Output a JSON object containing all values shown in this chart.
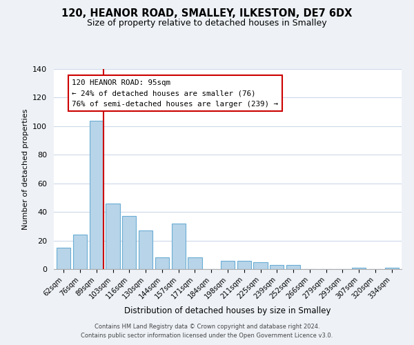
{
  "title": "120, HEANOR ROAD, SMALLEY, ILKESTON, DE7 6DX",
  "subtitle": "Size of property relative to detached houses in Smalley",
  "xlabel": "Distribution of detached houses by size in Smalley",
  "ylabel": "Number of detached properties",
  "bar_color": "#b8d4e8",
  "bar_edge_color": "#6aadd5",
  "categories": [
    "62sqm",
    "76sqm",
    "89sqm",
    "103sqm",
    "116sqm",
    "130sqm",
    "144sqm",
    "157sqm",
    "171sqm",
    "184sqm",
    "198sqm",
    "211sqm",
    "225sqm",
    "239sqm",
    "252sqm",
    "266sqm",
    "279sqm",
    "293sqm",
    "307sqm",
    "320sqm",
    "334sqm"
  ],
  "values": [
    15,
    24,
    104,
    46,
    37,
    27,
    8,
    32,
    8,
    0,
    6,
    6,
    5,
    3,
    3,
    0,
    0,
    0,
    1,
    0,
    1
  ],
  "ylim": [
    0,
    140
  ],
  "yticks": [
    0,
    20,
    40,
    60,
    80,
    100,
    120,
    140
  ],
  "property_line_color": "#cc0000",
  "annotation_title": "120 HEANOR ROAD: 95sqm",
  "annotation_line1": "← 24% of detached houses are smaller (76)",
  "annotation_line2": "76% of semi-detached houses are larger (239) →",
  "annotation_box_color": "#ffffff",
  "annotation_box_edge_color": "#cc0000",
  "footer_line1": "Contains HM Land Registry data © Crown copyright and database right 2024.",
  "footer_line2": "Contains public sector information licensed under the Open Government Licence v3.0.",
  "background_color": "#eef2f7",
  "plot_background_color": "#ffffff",
  "grid_color": "#ccd8e8"
}
